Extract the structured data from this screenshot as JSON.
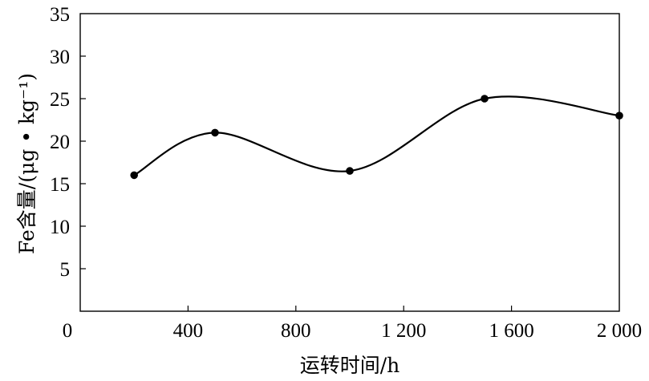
{
  "chart_data": {
    "type": "line",
    "title": "",
    "xlabel": "运转时间/h",
    "ylabel": "Fe含量/(μg • kg⁻¹)",
    "xlim": [
      0,
      2000
    ],
    "ylim": [
      0,
      35
    ],
    "x_ticks": [
      0,
      400,
      800,
      1200,
      1600,
      2000
    ],
    "x_tick_labels": [
      "0",
      "400",
      "800",
      "1 200",
      "1 600",
      "2 000"
    ],
    "y_ticks": [
      5,
      10,
      15,
      20,
      25,
      30,
      35
    ],
    "y_tick_labels": [
      "5",
      "10",
      "15",
      "20",
      "25",
      "30",
      "35"
    ],
    "grid": false,
    "series": [
      {
        "x": [
          200,
          500,
          1000,
          1500,
          2000
        ],
        "y": [
          16,
          21,
          16.5,
          25,
          23
        ],
        "color": "#000000",
        "smooth": true
      }
    ]
  }
}
